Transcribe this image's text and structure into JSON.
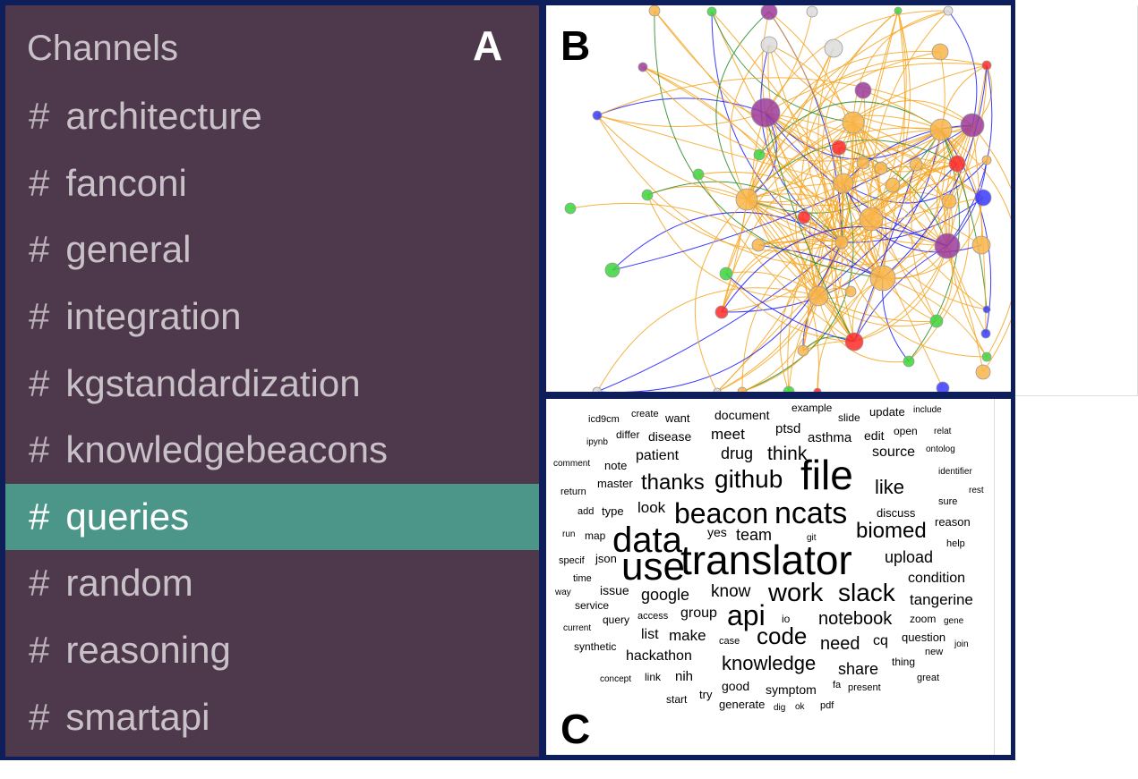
{
  "panels": {
    "a_label": "A",
    "b_label": "B",
    "c_label": "C"
  },
  "sidebar": {
    "header": "Channels",
    "hash_symbol": "#",
    "active_channel": "queries",
    "channels": [
      "architecture",
      "fanconi",
      "general",
      "integration",
      "kgstandardization",
      "knowledgebeacons",
      "queries",
      "random",
      "reasoning",
      "smartapi"
    ]
  },
  "network": {
    "edge_colors": [
      "#f5a623",
      "#1a1aff",
      "#2a8a2a"
    ],
    "node_colors": {
      "orange": "#f9b54a",
      "purple": "#9b3b9b",
      "green": "#3bd63b",
      "red": "#ff2a2a",
      "blue": "#3a3aff",
      "gray": "#dcdcdc"
    }
  },
  "wordcloud": {
    "words": [
      "icd9cm",
      "create",
      "want",
      "document",
      "example",
      "slide",
      "update",
      "include",
      "ipynb",
      "differ",
      "disease",
      "meet",
      "ptsd",
      "asthma",
      "edit",
      "open",
      "relat",
      "comment",
      "note",
      "patient",
      "drug",
      "think",
      "source",
      "ontolog",
      "file",
      "master",
      "thanks",
      "github",
      "like",
      "identifier",
      "return",
      "rest",
      "add",
      "look",
      "type",
      "beacon",
      "ncats",
      "discuss",
      "sure",
      "reason",
      "run",
      "map",
      "data",
      "yes",
      "team",
      "biomed",
      "git",
      "help",
      "specif",
      "json",
      "use",
      "translator",
      "upload",
      "condition",
      "time",
      "way",
      "issue",
      "google",
      "know",
      "work",
      "slack",
      "tangerine",
      "service",
      "group",
      "api",
      "io",
      "notebook",
      "zoom",
      "gene",
      "current",
      "query",
      "access",
      "list",
      "make",
      "code",
      "case",
      "need",
      "cq",
      "question",
      "join",
      "synthetic",
      "hackathon",
      "new",
      "knowledge",
      "share",
      "thing",
      "concept",
      "link",
      "nih",
      "good",
      "symptom",
      "fa",
      "present",
      "great",
      "start",
      "try",
      "generate",
      "dig",
      "ok",
      "pdf"
    ]
  }
}
